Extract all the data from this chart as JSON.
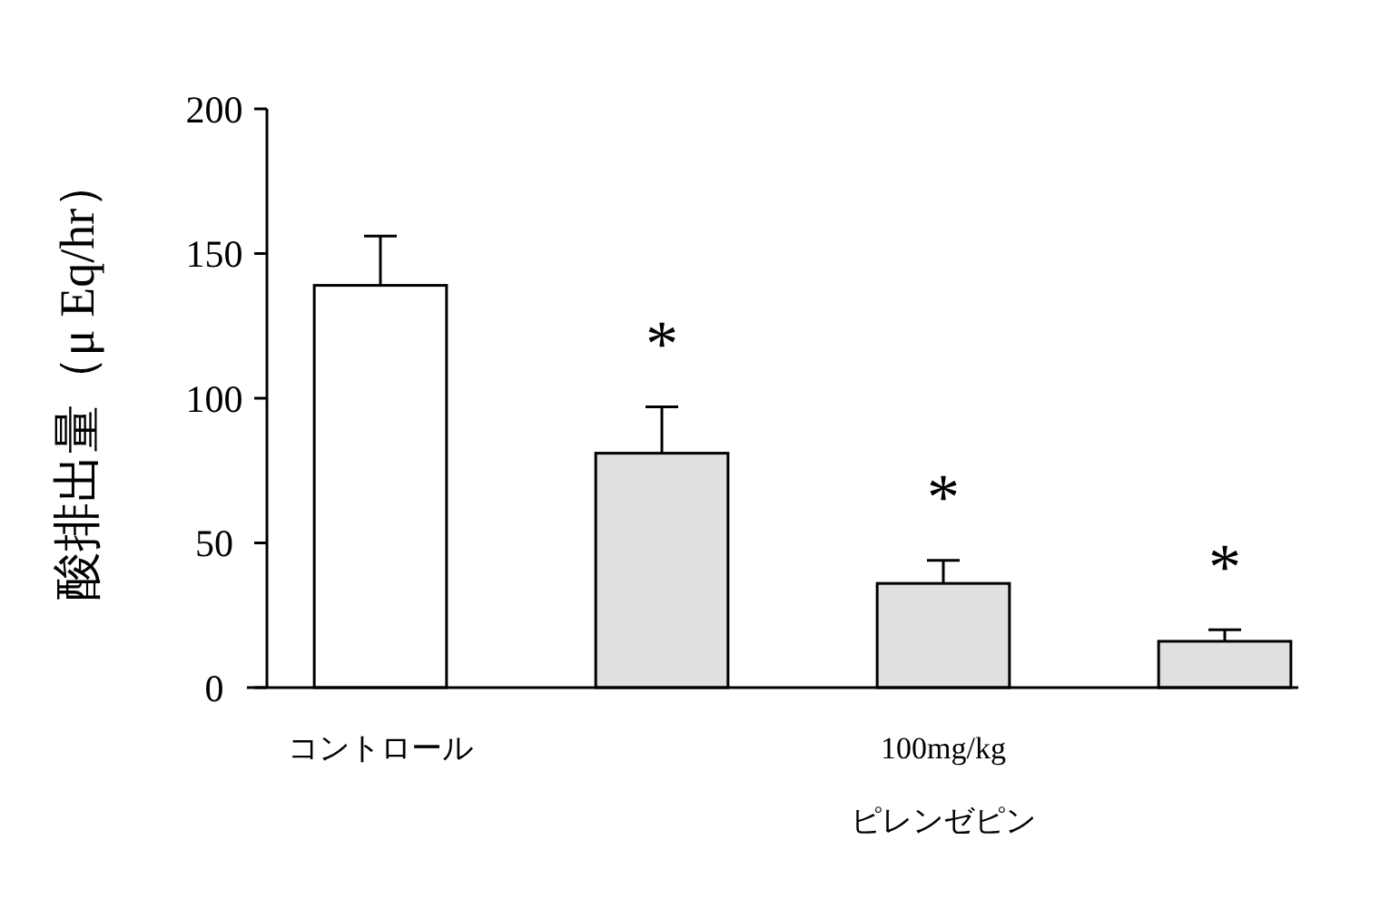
{
  "chart_data": {
    "type": "bar",
    "ylabel": "酸排出量（μ Eq/hr）",
    "categories": [
      "コントロール",
      null,
      "100mg/kg\nピレンゼピン",
      null
    ],
    "values": [
      139,
      81,
      36,
      16
    ],
    "colors": [
      "#ffffff",
      "#e0e0e0",
      "#e0e0e0",
      "#e0e0e0"
    ],
    "errors": [
      17,
      16,
      8,
      4
    ],
    "ylim": [
      0,
      200
    ],
    "yticks": [
      0,
      50,
      100,
      150,
      200
    ],
    "grid": false,
    "annotations": [
      "*",
      "*",
      "*"
    ]
  }
}
